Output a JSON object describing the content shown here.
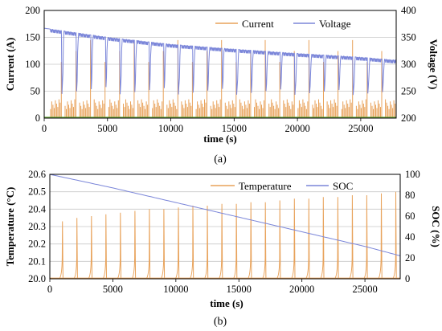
{
  "chart_data": [
    {
      "type": "line",
      "caption": "(a)",
      "xlabel": "time (s)",
      "ylabel_left": "Current (A)",
      "ylabel_right": "Voltage (V)",
      "xlim": [
        0,
        27800
      ],
      "xticks": [
        0,
        5000,
        10000,
        15000,
        20000,
        25000
      ],
      "ylim_left": [
        0,
        200
      ],
      "yticks_left": [
        0,
        50,
        100,
        150,
        200
      ],
      "ylim_right": [
        200,
        400
      ],
      "yticks_right": [
        200,
        250,
        300,
        350,
        400
      ],
      "grid": true,
      "legend_position": "top-right",
      "cycle_count": 24,
      "cycle_period_s": 1150,
      "series": [
        {
          "name": "Current",
          "axis": "left",
          "color": "#E8A25A",
          "description_values": {
            "base_pulse_max": 37,
            "peak_value": 145,
            "min": 0
          }
        },
        {
          "name": "Voltage",
          "axis": "right",
          "color": "#7B86D9",
          "x": [
            0,
            5000,
            10000,
            15000,
            20000,
            25000,
            27500
          ],
          "values": [
            367,
            350,
            337,
            328,
            320,
            313,
            308
          ],
          "pulse_min": 240
        }
      ]
    },
    {
      "type": "line",
      "caption": "(b)",
      "xlabel": "time (s)",
      "ylabel_left": "Temperature (°C)",
      "ylabel_right": "SOC (%)",
      "xlim": [
        0,
        27800
      ],
      "xticks": [
        0,
        5000,
        10000,
        15000,
        20000,
        25000
      ],
      "ylim_left": [
        20.0,
        20.6
      ],
      "yticks_left": [
        20.0,
        20.1,
        20.2,
        20.3,
        20.4,
        20.5,
        20.6
      ],
      "ylim_right": [
        0,
        100
      ],
      "yticks_right": [
        0,
        20,
        40,
        60,
        80,
        100
      ],
      "grid": true,
      "legend_position": "top-right",
      "series": [
        {
          "name": "Temperature",
          "axis": "left",
          "color": "#E8A25A",
          "peak_x": [
            1000,
            2150,
            3300,
            4450,
            5600,
            6750,
            7900,
            9050,
            10200,
            11350,
            12500,
            13650,
            14800,
            15950,
            17100,
            18250,
            19400,
            20550,
            21700,
            22850,
            24000,
            25150,
            26300,
            27450
          ],
          "peak_values": [
            20.33,
            20.35,
            20.36,
            20.37,
            20.38,
            20.39,
            20.4,
            20.4,
            20.41,
            20.42,
            20.42,
            20.43,
            20.43,
            20.44,
            20.44,
            20.45,
            20.46,
            20.46,
            20.47,
            20.47,
            20.48,
            20.48,
            20.49,
            20.5
          ],
          "baseline": 20.0
        },
        {
          "name": "SOC",
          "axis": "right",
          "color": "#7B86D9",
          "x": [
            0,
            5000,
            10000,
            15000,
            20000,
            25000,
            27800
          ],
          "values": [
            100,
            87,
            73,
            59,
            45,
            31,
            22
          ]
        }
      ]
    }
  ]
}
